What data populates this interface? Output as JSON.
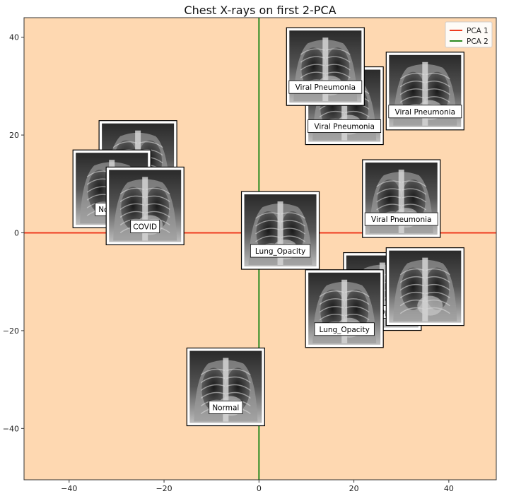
{
  "chart_data": {
    "type": "scatter",
    "title": "Chest X-rays on first 2-PCA",
    "xlabel": "",
    "ylabel": "",
    "xlim": [
      -49.5,
      50
    ],
    "ylim": [
      -50.5,
      44
    ],
    "xticks": [
      -40,
      -20,
      0,
      20,
      40
    ],
    "yticks": [
      -40,
      -20,
      0,
      20,
      40
    ],
    "background_color": "#fed8b1",
    "grid": false,
    "legend": {
      "placement": "top-right",
      "entries": [
        {
          "name": "PCA 1",
          "color": "#ee3b1f"
        },
        {
          "name": "PCA 2",
          "color": "#2a8a1f"
        }
      ]
    },
    "reference_lines": [
      {
        "name": "PCA 1",
        "orientation": "horizontal",
        "value": 0,
        "color": "#ee3b1f"
      },
      {
        "name": "PCA 2",
        "orientation": "vertical",
        "value": 0,
        "color": "#2a8a1f"
      }
    ],
    "points": [
      {
        "x": -25.5,
        "y": 15,
        "label": ""
      },
      {
        "x": -31,
        "y": 9,
        "label": "Normal"
      },
      {
        "x": -24,
        "y": 5.5,
        "label": "COVID"
      },
      {
        "x": 18,
        "y": 26,
        "label": "Viral Pneumonia"
      },
      {
        "x": 14,
        "y": 34,
        "label": "Viral Pneumonia"
      },
      {
        "x": 35,
        "y": 29,
        "label": "Viral Pneumonia"
      },
      {
        "x": 30,
        "y": 7,
        "label": "Viral Pneumonia"
      },
      {
        "x": 4.5,
        "y": 0.5,
        "label": "Lung_Opacity"
      },
      {
        "x": 26,
        "y": -12,
        "label": "Lung_Opacity"
      },
      {
        "x": 35,
        "y": -11,
        "label": ""
      },
      {
        "x": 18,
        "y": -15.5,
        "label": "Lung_Opacity"
      },
      {
        "x": -7,
        "y": -31.5,
        "label": "Normal"
      }
    ]
  }
}
